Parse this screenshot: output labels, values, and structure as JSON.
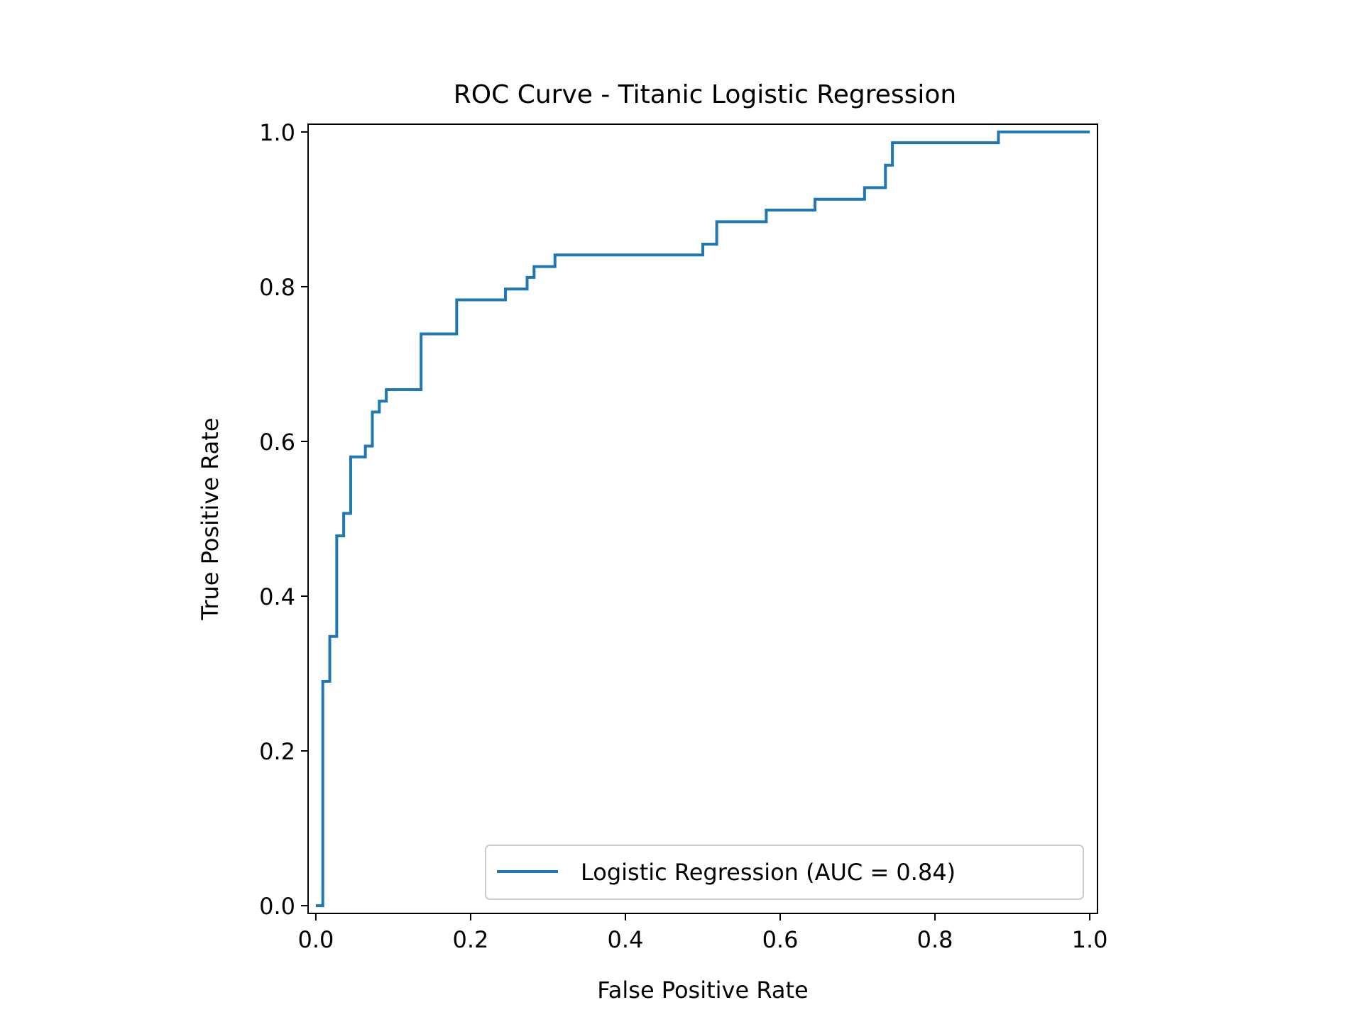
{
  "chart_data": {
    "type": "line",
    "title": "ROC Curve - Titanic Logistic Regression",
    "xlabel": "False Positive Rate",
    "ylabel": "True Positive Rate",
    "xlim": [
      -0.01,
      1.01
    ],
    "ylim": [
      -0.01,
      1.01
    ],
    "xticks": [
      0.0,
      0.2,
      0.4,
      0.6,
      0.8,
      1.0
    ],
    "xtick_labels": [
      "0.0",
      "0.2",
      "0.4",
      "0.6",
      "0.8",
      "1.0"
    ],
    "yticks": [
      0.0,
      0.2,
      0.4,
      0.6,
      0.8,
      1.0
    ],
    "ytick_labels": [
      "0.0",
      "0.2",
      "0.4",
      "0.6",
      "0.8",
      "1.0"
    ],
    "grid": false,
    "legend_position": "lower-right",
    "series": [
      {
        "name": "Logistic Regression (AUC = 0.84)",
        "color": "#1f77b4",
        "drawstyle": "steps",
        "points": [
          [
            0.0,
            0.0
          ],
          [
            0.009,
            0.0
          ],
          [
            0.009,
            0.29
          ],
          [
            0.018,
            0.29
          ],
          [
            0.018,
            0.348
          ],
          [
            0.027,
            0.348
          ],
          [
            0.027,
            0.478
          ],
          [
            0.036,
            0.478
          ],
          [
            0.036,
            0.507
          ],
          [
            0.045,
            0.507
          ],
          [
            0.045,
            0.58
          ],
          [
            0.064,
            0.58
          ],
          [
            0.064,
            0.594
          ],
          [
            0.073,
            0.594
          ],
          [
            0.073,
            0.638
          ],
          [
            0.082,
            0.638
          ],
          [
            0.082,
            0.652
          ],
          [
            0.091,
            0.652
          ],
          [
            0.091,
            0.667
          ],
          [
            0.136,
            0.667
          ],
          [
            0.136,
            0.739
          ],
          [
            0.182,
            0.739
          ],
          [
            0.182,
            0.783
          ],
          [
            0.245,
            0.783
          ],
          [
            0.245,
            0.797
          ],
          [
            0.273,
            0.797
          ],
          [
            0.273,
            0.812
          ],
          [
            0.282,
            0.812
          ],
          [
            0.282,
            0.826
          ],
          [
            0.309,
            0.826
          ],
          [
            0.309,
            0.841
          ],
          [
            0.5,
            0.841
          ],
          [
            0.5,
            0.855
          ],
          [
            0.518,
            0.855
          ],
          [
            0.518,
            0.884
          ],
          [
            0.582,
            0.884
          ],
          [
            0.582,
            0.899
          ],
          [
            0.645,
            0.899
          ],
          [
            0.645,
            0.913
          ],
          [
            0.709,
            0.913
          ],
          [
            0.709,
            0.928
          ],
          [
            0.736,
            0.928
          ],
          [
            0.736,
            0.957
          ],
          [
            0.745,
            0.957
          ],
          [
            0.745,
            0.986
          ],
          [
            0.882,
            0.986
          ],
          [
            0.882,
            1.0
          ],
          [
            1.0,
            1.0
          ]
        ]
      }
    ]
  }
}
